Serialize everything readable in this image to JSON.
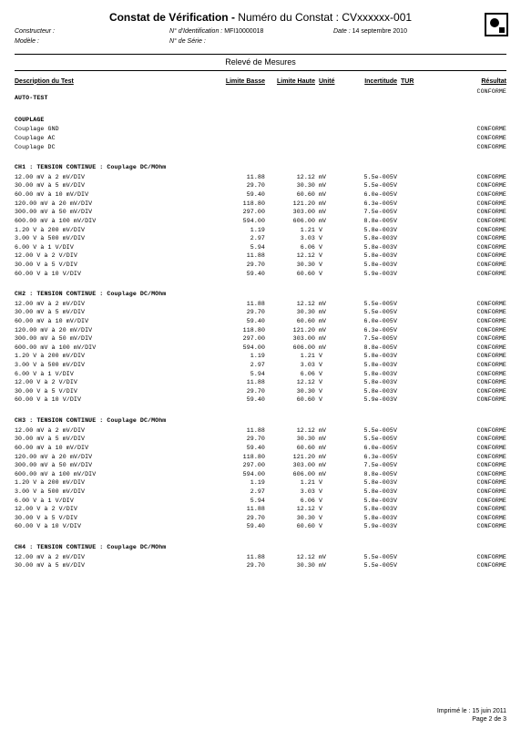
{
  "title_main": "Constat de Vérification",
  "title_sep": " - ",
  "title_sub_label": "Numéro du Constat : ",
  "title_sub_value": "CVxxxxxx-001",
  "hdr": {
    "constructeur_lbl": "Constructeur :",
    "constructeur_val": "",
    "modele_lbl": "Modèle :",
    "modele_val": "",
    "ident_lbl": "N° d'Identification :",
    "ident_val": "MFI10000018",
    "serie_lbl": "N° de Série :",
    "serie_val": "",
    "date_lbl": "Date :",
    "date_val": "14 septembre 2010"
  },
  "bar": "Relevé de Mesures",
  "cols": {
    "desc": "Description du Test",
    "lb": "Limite Basse",
    "lh": "Limite Haute",
    "un": "Unité",
    "inc": "Incertitude",
    "tur": "TUR",
    "res": "Résultat"
  },
  "blocks": [
    {
      "type": "sect",
      "label": "AUTO-TEST",
      "res": "CONFORME"
    },
    {
      "type": "gap"
    },
    {
      "type": "sect",
      "label": "COUPLAGE"
    },
    {
      "type": "row",
      "desc": "Couplage GND",
      "res": "CONFORME"
    },
    {
      "type": "row",
      "desc": "Couplage AC",
      "res": "CONFORME"
    },
    {
      "type": "row",
      "desc": "Couplage DC",
      "res": "CONFORME"
    },
    {
      "type": "gap"
    },
    {
      "type": "sect",
      "label": "CH1 : TENSION CONTINUE : Couplage DC/MOhm"
    },
    {
      "type": "row",
      "desc": "12.00 mV à 2 mV/DIV",
      "lb": "11.88",
      "lh": "12.12",
      "un": "mV",
      "inc": "5.5e-005V",
      "res": "CONFORME"
    },
    {
      "type": "row",
      "desc": "30.00 mV à 5 mV/DIV",
      "lb": "29.70",
      "lh": "30.30",
      "un": "mV",
      "inc": "5.5e-005V",
      "res": "CONFORME"
    },
    {
      "type": "row",
      "desc": "60.00 mV à 10 mV/DIV",
      "lb": "59.40",
      "lh": "60.60",
      "un": "mV",
      "inc": "6.0e-005V",
      "res": "CONFORME"
    },
    {
      "type": "row",
      "desc": "120.00 mV à 20 mV/DIV",
      "lb": "118.80",
      "lh": "121.20",
      "un": "mV",
      "inc": "6.3e-005V",
      "res": "CONFORME"
    },
    {
      "type": "row",
      "desc": "300.00 mV à 50 mV/DIV",
      "lb": "297.00",
      "lh": "303.00",
      "un": "mV",
      "inc": "7.5e-005V",
      "res": "CONFORME"
    },
    {
      "type": "row",
      "desc": "600.00 mV à 100 mV/DIV",
      "lb": "594.00",
      "lh": "606.00",
      "un": "mV",
      "inc": "8.8e-005V",
      "res": "CONFORME"
    },
    {
      "type": "row",
      "desc": "1.20 V à 200 mV/DIV",
      "lb": "1.19",
      "lh": "1.21",
      "un": "V",
      "inc": "5.8e-003V",
      "res": "CONFORME"
    },
    {
      "type": "row",
      "desc": "3.00 V à 500 mV/DIV",
      "lb": "2.97",
      "lh": "3.03",
      "un": "V",
      "inc": "5.8e-003V",
      "res": "CONFORME"
    },
    {
      "type": "row",
      "desc": "6.00 V à 1 V/DIV",
      "lb": "5.94",
      "lh": "6.06",
      "un": "V",
      "inc": "5.8e-003V",
      "res": "CONFORME"
    },
    {
      "type": "row",
      "desc": "12.00 V à 2 V/DIV",
      "lb": "11.88",
      "lh": "12.12",
      "un": "V",
      "inc": "5.8e-003V",
      "res": "CONFORME"
    },
    {
      "type": "row",
      "desc": "30.00 V à 5 V/DIV",
      "lb": "29.70",
      "lh": "30.30",
      "un": "V",
      "inc": "5.8e-003V",
      "res": "CONFORME"
    },
    {
      "type": "row",
      "desc": "60.00 V à 10 V/DIV",
      "lb": "59.40",
      "lh": "60.60",
      "un": "V",
      "inc": "5.9e-003V",
      "res": "CONFORME"
    },
    {
      "type": "gap"
    },
    {
      "type": "sect",
      "label": "CH2 : TENSION CONTINUE : Couplage DC/MOhm"
    },
    {
      "type": "row",
      "desc": "12.00 mV à 2 mV/DIV",
      "lb": "11.88",
      "lh": "12.12",
      "un": "mV",
      "inc": "5.5e-005V",
      "res": "CONFORME"
    },
    {
      "type": "row",
      "desc": "30.00 mV à 5 mV/DIV",
      "lb": "29.70",
      "lh": "30.30",
      "un": "mV",
      "inc": "5.5e-005V",
      "res": "CONFORME"
    },
    {
      "type": "row",
      "desc": "60.00 mV à 10 mV/DIV",
      "lb": "59.40",
      "lh": "60.60",
      "un": "mV",
      "inc": "6.0e-005V",
      "res": "CONFORME"
    },
    {
      "type": "row",
      "desc": "120.00 mV à 20 mV/DIV",
      "lb": "118.80",
      "lh": "121.20",
      "un": "mV",
      "inc": "6.3e-005V",
      "res": "CONFORME"
    },
    {
      "type": "row",
      "desc": "300.00 mV à 50 mV/DIV",
      "lb": "297.00",
      "lh": "303.00",
      "un": "mV",
      "inc": "7.5e-005V",
      "res": "CONFORME"
    },
    {
      "type": "row",
      "desc": "600.00 mV à 100 mV/DIV",
      "lb": "594.00",
      "lh": "606.00",
      "un": "mV",
      "inc": "8.8e-005V",
      "res": "CONFORME"
    },
    {
      "type": "row",
      "desc": "1.20 V à 200 mV/DIV",
      "lb": "1.19",
      "lh": "1.21",
      "un": "V",
      "inc": "5.8e-003V",
      "res": "CONFORME"
    },
    {
      "type": "row",
      "desc": "3.00 V à 500 mV/DIV",
      "lb": "2.97",
      "lh": "3.03",
      "un": "V",
      "inc": "5.8e-003V",
      "res": "CONFORME"
    },
    {
      "type": "row",
      "desc": "6.00 V à 1 V/DIV",
      "lb": "5.94",
      "lh": "6.06",
      "un": "V",
      "inc": "5.8e-003V",
      "res": "CONFORME"
    },
    {
      "type": "row",
      "desc": "12.00 V à 2 V/DIV",
      "lb": "11.88",
      "lh": "12.12",
      "un": "V",
      "inc": "5.8e-003V",
      "res": "CONFORME"
    },
    {
      "type": "row",
      "desc": "30.00 V à 5 V/DIV",
      "lb": "29.70",
      "lh": "30.30",
      "un": "V",
      "inc": "5.8e-003V",
      "res": "CONFORME"
    },
    {
      "type": "row",
      "desc": "60.00 V à 10 V/DIV",
      "lb": "59.40",
      "lh": "60.60",
      "un": "V",
      "inc": "5.9e-003V",
      "res": "CONFORME"
    },
    {
      "type": "gap"
    },
    {
      "type": "sect",
      "label": "CH3 : TENSION CONTINUE : Couplage DC/MOhm"
    },
    {
      "type": "row",
      "desc": "12.00 mV à 2 mV/DIV",
      "lb": "11.88",
      "lh": "12.12",
      "un": "mV",
      "inc": "5.5e-005V",
      "res": "CONFORME"
    },
    {
      "type": "row",
      "desc": "30.00 mV à 5 mV/DIV",
      "lb": "29.70",
      "lh": "30.30",
      "un": "mV",
      "inc": "5.5e-005V",
      "res": "CONFORME"
    },
    {
      "type": "row",
      "desc": "60.00 mV à 10 mV/DIV",
      "lb": "59.40",
      "lh": "60.60",
      "un": "mV",
      "inc": "6.0e-005V",
      "res": "CONFORME"
    },
    {
      "type": "row",
      "desc": "120.00 mV à 20 mV/DIV",
      "lb": "118.80",
      "lh": "121.20",
      "un": "mV",
      "inc": "6.3e-005V",
      "res": "CONFORME"
    },
    {
      "type": "row",
      "desc": "300.00 mV à 50 mV/DIV",
      "lb": "297.00",
      "lh": "303.00",
      "un": "mV",
      "inc": "7.5e-005V",
      "res": "CONFORME"
    },
    {
      "type": "row",
      "desc": "600.00 mV à 100 mV/DIV",
      "lb": "594.00",
      "lh": "606.00",
      "un": "mV",
      "inc": "8.8e-005V",
      "res": "CONFORME"
    },
    {
      "type": "row",
      "desc": "1.20 V à 200 mV/DIV",
      "lb": "1.19",
      "lh": "1.21",
      "un": "V",
      "inc": "5.8e-003V",
      "res": "CONFORME"
    },
    {
      "type": "row",
      "desc": "3.00 V à 500 mV/DIV",
      "lb": "2.97",
      "lh": "3.03",
      "un": "V",
      "inc": "5.8e-003V",
      "res": "CONFORME"
    },
    {
      "type": "row",
      "desc": "6.00 V à 1 V/DIV",
      "lb": "5.94",
      "lh": "6.06",
      "un": "V",
      "inc": "5.8e-003V",
      "res": "CONFORME"
    },
    {
      "type": "row",
      "desc": "12.00 V à 2 V/DIV",
      "lb": "11.88",
      "lh": "12.12",
      "un": "V",
      "inc": "5.8e-003V",
      "res": "CONFORME"
    },
    {
      "type": "row",
      "desc": "30.00 V à 5 V/DIV",
      "lb": "29.70",
      "lh": "30.30",
      "un": "V",
      "inc": "5.8e-003V",
      "res": "CONFORME"
    },
    {
      "type": "row",
      "desc": "60.00 V à 10 V/DIV",
      "lb": "59.40",
      "lh": "60.60",
      "un": "V",
      "inc": "5.9e-003V",
      "res": "CONFORME"
    },
    {
      "type": "gap"
    },
    {
      "type": "sect",
      "label": "CH4 : TENSION CONTINUE : Couplage DC/MOhm"
    },
    {
      "type": "row",
      "desc": "12.00 mV à 2 mV/DIV",
      "lb": "11.88",
      "lh": "12.12",
      "un": "mV",
      "inc": "5.5e-005V",
      "res": "CONFORME"
    },
    {
      "type": "row",
      "desc": "30.00 mV à 5 mV/DIV",
      "lb": "29.70",
      "lh": "30.30",
      "un": "mV",
      "inc": "5.5e-005V",
      "res": "CONFORME"
    }
  ],
  "footer": {
    "printed": "Imprimé le : 15 juin 2011",
    "page": "Page 2 de 3"
  }
}
